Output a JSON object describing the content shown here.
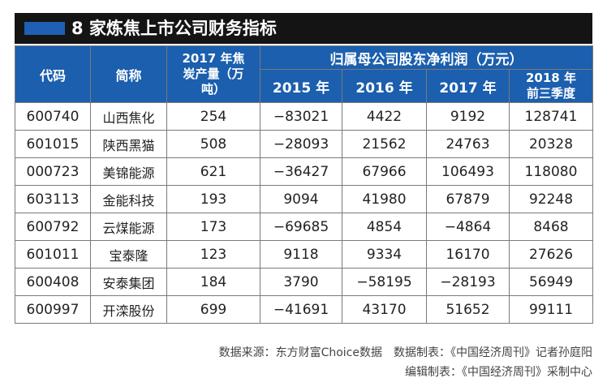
{
  "title": "8 家炼焦上市公司财务指标",
  "header": {
    "code": "代码",
    "name": "简称",
    "output": "2017 年焦炭产量（万吨）",
    "profit_group": "归属母公司股东净利润（万元）",
    "years": [
      "2015 年",
      "2016 年",
      "2017 年",
      "2018 年前三季度"
    ]
  },
  "rows": [
    {
      "code": "600740",
      "name": "山西焦化",
      "output": "254",
      "y2015": "−83021",
      "y2016": "4422",
      "y2017": "9192",
      "y2018": "128741"
    },
    {
      "code": "601015",
      "name": "陕西黑猫",
      "output": "508",
      "y2015": "−28093",
      "y2016": "21562",
      "y2017": "24763",
      "y2018": "20328"
    },
    {
      "code": "000723",
      "name": "美锦能源",
      "output": "621",
      "y2015": "−36427",
      "y2016": "67966",
      "y2017": "106493",
      "y2018": "118080"
    },
    {
      "code": "603113",
      "name": "金能科技",
      "output": "193",
      "y2015": "9094",
      "y2016": "41980",
      "y2017": "67879",
      "y2018": "92248"
    },
    {
      "code": "600792",
      "name": "云煤能源",
      "output": "173",
      "y2015": "−69685",
      "y2016": "4854",
      "y2017": "−4864",
      "y2018": "8468"
    },
    {
      "code": "601011",
      "name": "宝泰隆",
      "output": "123",
      "y2015": "9118",
      "y2016": "9334",
      "y2017": "16170",
      "y2018": "27626"
    },
    {
      "code": "600408",
      "name": "安泰集团",
      "output": "184",
      "y2015": "3790",
      "y2016": "−58195",
      "y2017": "−28193",
      "y2018": "56949"
    },
    {
      "code": "600997",
      "name": "开滦股份",
      "output": "699",
      "y2015": "−41691",
      "y2016": "43170",
      "y2017": "51652",
      "y2018": "99111"
    }
  ],
  "notes": {
    "source": "数据来源：东方财富Choice数据　数据制表：《中国经济周刊》记者孙庭阳",
    "editor": "编辑制表：《中国经济周刊》采制中心"
  },
  "colors": {
    "header_bg": "#1b5fae",
    "title_bg": "#141414",
    "accent": "#1f5fb5"
  }
}
